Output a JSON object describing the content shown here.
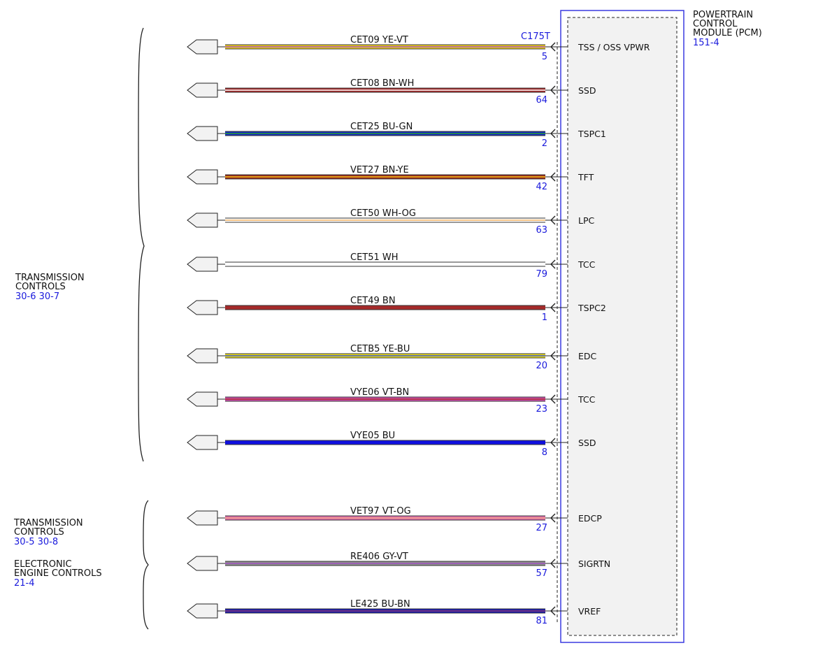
{
  "module": {
    "title_lines": [
      "POWERTRAIN",
      "CONTROL",
      "MODULE (PCM)"
    ],
    "ref": "151-4",
    "connector": "C175T"
  },
  "groups": [
    {
      "lines": [
        "TRANSMISSION",
        "CONTROLS"
      ],
      "ref": "30-6   30-7"
    },
    {
      "lines": [
        "TRANSMISSION",
        "CONTROLS"
      ],
      "ref": "30-5   30-8"
    },
    {
      "lines": [
        "ELECTRONIC",
        "ENGINE CONTROLS"
      ],
      "ref": "21-4"
    }
  ],
  "wires": [
    {
      "circuit": "CET09",
      "color_code": "YE-VT",
      "pin": "5",
      "signal": "TSS / OSS VPWR",
      "colors": [
        "#f2d21b",
        "#a050c0"
      ]
    },
    {
      "circuit": "CET08",
      "color_code": "BN-WH",
      "pin": "64",
      "signal": "SSD",
      "colors": [
        "#a52a2a",
        "#ffffff"
      ]
    },
    {
      "circuit": "CET25",
      "color_code": "BU-GN",
      "pin": "2",
      "signal": "TSPC1",
      "colors": [
        "#1428c8",
        "#2aa02a"
      ]
    },
    {
      "circuit": "VET27",
      "color_code": "BN-YE",
      "pin": "42",
      "signal": "TFT",
      "colors": [
        "#9a2a1a",
        "#f2c21b"
      ]
    },
    {
      "circuit": "CET50",
      "color_code": "WH-OG",
      "pin": "63",
      "signal": "LPC",
      "colors": [
        "#ffffff",
        "#f0b060"
      ]
    },
    {
      "circuit": "CET51",
      "color_code": "WH",
      "pin": "79",
      "signal": "TCC",
      "colors": [
        "#ffffff",
        "#ffffff"
      ]
    },
    {
      "circuit": "CET49",
      "color_code": "BN",
      "pin": "1",
      "signal": "TSPC2",
      "colors": [
        "#a52a2a",
        "#a52a2a"
      ]
    },
    {
      "circuit": "CETB5",
      "color_code": "YE-BU",
      "pin": "20",
      "signal": "EDC",
      "colors": [
        "#f2e21b",
        "#3050d0"
      ]
    },
    {
      "circuit": "VYE06",
      "color_code": "VT-BN",
      "pin": "23",
      "signal": "TCC",
      "colors": [
        "#d050b0",
        "#a52a2a"
      ]
    },
    {
      "circuit": "VYE05",
      "color_code": "BU",
      "pin": "8",
      "signal": "SSD",
      "colors": [
        "#1010e0",
        "#1010e0"
      ]
    },
    {
      "circuit": "VET97",
      "color_code": "VT-OG",
      "pin": "27",
      "signal": "EDCP",
      "colors": [
        "#e070b0",
        "#f0a080"
      ]
    },
    {
      "circuit": "RE406",
      "color_code": "GY-VT",
      "pin": "57",
      "signal": "SIGRTN",
      "colors": [
        "#909090",
        "#a050c0"
      ]
    },
    {
      "circuit": "LE425",
      "color_code": "BU-BN",
      "pin": "81",
      "signal": "VREF",
      "colors": [
        "#1a1ab4",
        "#8a3a6a"
      ]
    }
  ]
}
